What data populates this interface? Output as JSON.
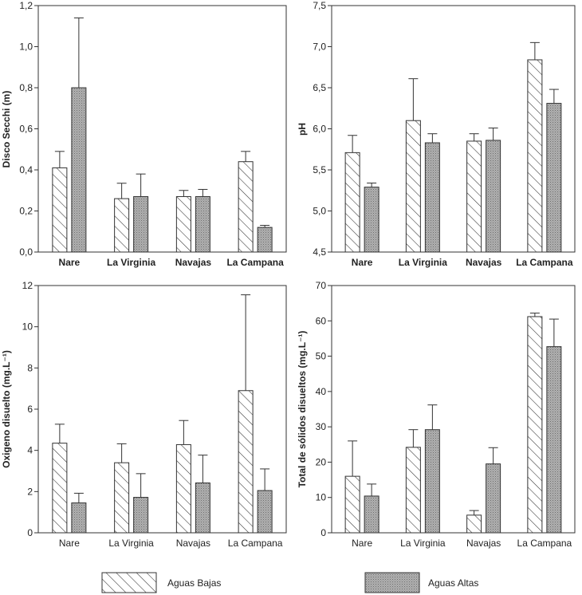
{
  "chart_data": [
    {
      "type": "bar",
      "ylabel": "Disco Secchi (m)",
      "categories": [
        "Nare",
        "La Virginia",
        "Navajas",
        "La Campana"
      ],
      "category_style": "bold",
      "ylim": [
        0,
        1.2
      ],
      "yticks": [
        "0,0",
        "0,2",
        "0,4",
        "0,6",
        "0,8",
        "1,0",
        "1,2"
      ],
      "ytick_values": [
        0,
        0.2,
        0.4,
        0.6,
        0.8,
        1.0,
        1.2
      ],
      "series": [
        {
          "name": "Aguas Bajas",
          "values": [
            0.41,
            0.26,
            0.27,
            0.44
          ],
          "errors": [
            0.08,
            0.075,
            0.03,
            0.05
          ]
        },
        {
          "name": "Aguas Altas",
          "values": [
            0.8,
            0.27,
            0.27,
            0.12
          ],
          "errors": [
            0.34,
            0.11,
            0.035,
            0.01
          ]
        }
      ],
      "grid": false
    },
    {
      "type": "bar",
      "ylabel": "pH",
      "categories": [
        "Nare",
        "La Virginia",
        "Navajas",
        "La Campana"
      ],
      "category_style": "bold",
      "ylim": [
        4.5,
        7.5
      ],
      "yticks": [
        "4,5",
        "5,0",
        "5,5",
        "6,0",
        "6,5",
        "7,0",
        "7,5"
      ],
      "ytick_values": [
        4.5,
        5.0,
        5.5,
        6.0,
        6.5,
        7.0,
        7.5
      ],
      "series": [
        {
          "name": "Aguas Bajas",
          "values": [
            5.71,
            6.1,
            5.85,
            6.84
          ],
          "errors": [
            0.21,
            0.51,
            0.09,
            0.21
          ]
        },
        {
          "name": "Aguas Altas",
          "values": [
            5.29,
            5.83,
            5.86,
            6.31
          ],
          "errors": [
            0.05,
            0.11,
            0.15,
            0.17
          ]
        }
      ],
      "grid": false
    },
    {
      "type": "bar",
      "ylabel": "Oxigeno disuelto (mg.L⁻¹)",
      "categories": [
        "Nare",
        "La Virginia",
        "Navajas",
        "La Campana"
      ],
      "category_style": "normal",
      "ylim": [
        0,
        12
      ],
      "yticks": [
        "0",
        "2",
        "4",
        "6",
        "8",
        "10",
        "12"
      ],
      "ytick_values": [
        0,
        2,
        4,
        6,
        8,
        10,
        12
      ],
      "series": [
        {
          "name": "Aguas Bajas",
          "values": [
            4.35,
            3.4,
            4.28,
            6.9
          ],
          "errors": [
            0.92,
            0.92,
            1.17,
            4.65
          ]
        },
        {
          "name": "Aguas Altas",
          "values": [
            1.45,
            1.72,
            2.42,
            2.05
          ],
          "errors": [
            0.47,
            1.15,
            1.35,
            1.05
          ]
        }
      ],
      "grid": false
    },
    {
      "type": "bar",
      "ylabel": "Total de sólidos disueltos (mg.L⁻¹)",
      "categories": [
        "Nare",
        "La Virginia",
        "Navajas",
        "La Campana"
      ],
      "category_style": "normal",
      "ylim": [
        0,
        70
      ],
      "yticks": [
        "0",
        "10",
        "20",
        "30",
        "40",
        "50",
        "60",
        "70"
      ],
      "ytick_values": [
        0,
        10,
        20,
        30,
        40,
        50,
        60,
        70
      ],
      "series": [
        {
          "name": "Aguas Bajas",
          "values": [
            16.0,
            24.2,
            5.0,
            61.2
          ],
          "errors": [
            10.0,
            5.0,
            1.3,
            1.0
          ]
        },
        {
          "name": "Aguas Altas",
          "values": [
            10.4,
            29.2,
            19.5,
            52.7
          ],
          "errors": [
            3.4,
            7.0,
            4.6,
            7.8
          ]
        }
      ],
      "grid": false
    }
  ],
  "legend": {
    "items": [
      {
        "label": "Aguas Bajas",
        "pattern": "hatch"
      },
      {
        "label": "Aguas Altas",
        "pattern": "stipple"
      }
    ]
  },
  "colors": {
    "bajas_fill": "#ffffff",
    "bajas_hatch": "#333333",
    "altas_fill": "#a9a9a9",
    "altas_dots": "#7a7a7a",
    "axis": "#333333"
  }
}
